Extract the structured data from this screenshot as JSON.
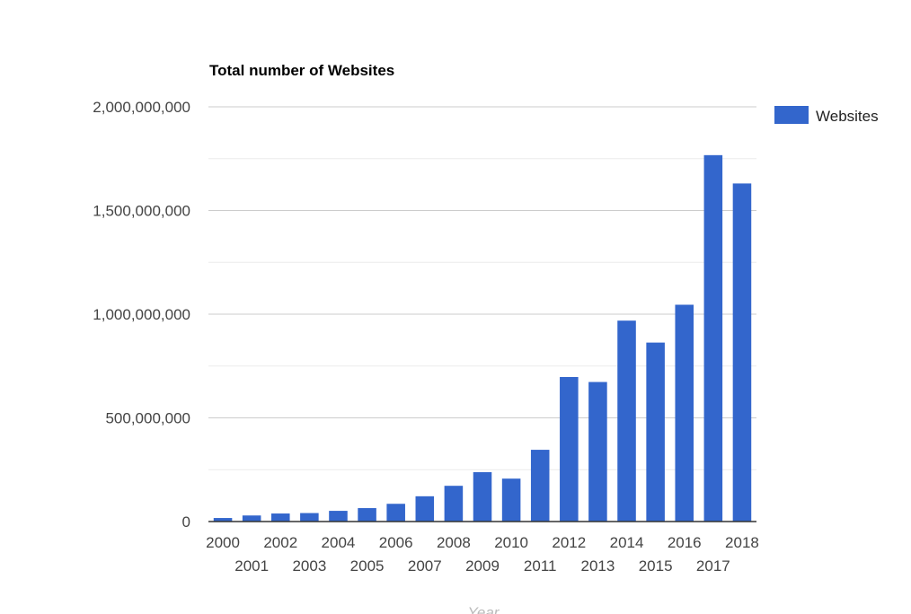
{
  "chart_data": {
    "type": "bar",
    "title": "Total number of Websites",
    "xlabel": "Year",
    "ylabel": "",
    "ylim": [
      0,
      2000000000
    ],
    "y_ticks": [
      "0",
      "500,000,000",
      "1,000,000,000",
      "1,500,000,000",
      "2,000,000,000"
    ],
    "y_tick_values": [
      0,
      500000000,
      1000000000,
      1500000000,
      2000000000
    ],
    "minor_gridlines": true,
    "legend_position": "right",
    "categories": [
      "2000",
      "2001",
      "2002",
      "2003",
      "2004",
      "2005",
      "2006",
      "2007",
      "2008",
      "2009",
      "2010",
      "2011",
      "2012",
      "2013",
      "2014",
      "2015",
      "2016",
      "2017",
      "2018"
    ],
    "series": [
      {
        "name": "Websites",
        "color": "#3366cc",
        "values": [
          17087182,
          29254370,
          38760373,
          40912332,
          51611646,
          64780617,
          85507314,
          121892559,
          172338726,
          238027855,
          206956723,
          346004403,
          697089489,
          672985183,
          968882453,
          863105652,
          1045534808,
          1766926408,
          1630322579
        ]
      }
    ]
  }
}
